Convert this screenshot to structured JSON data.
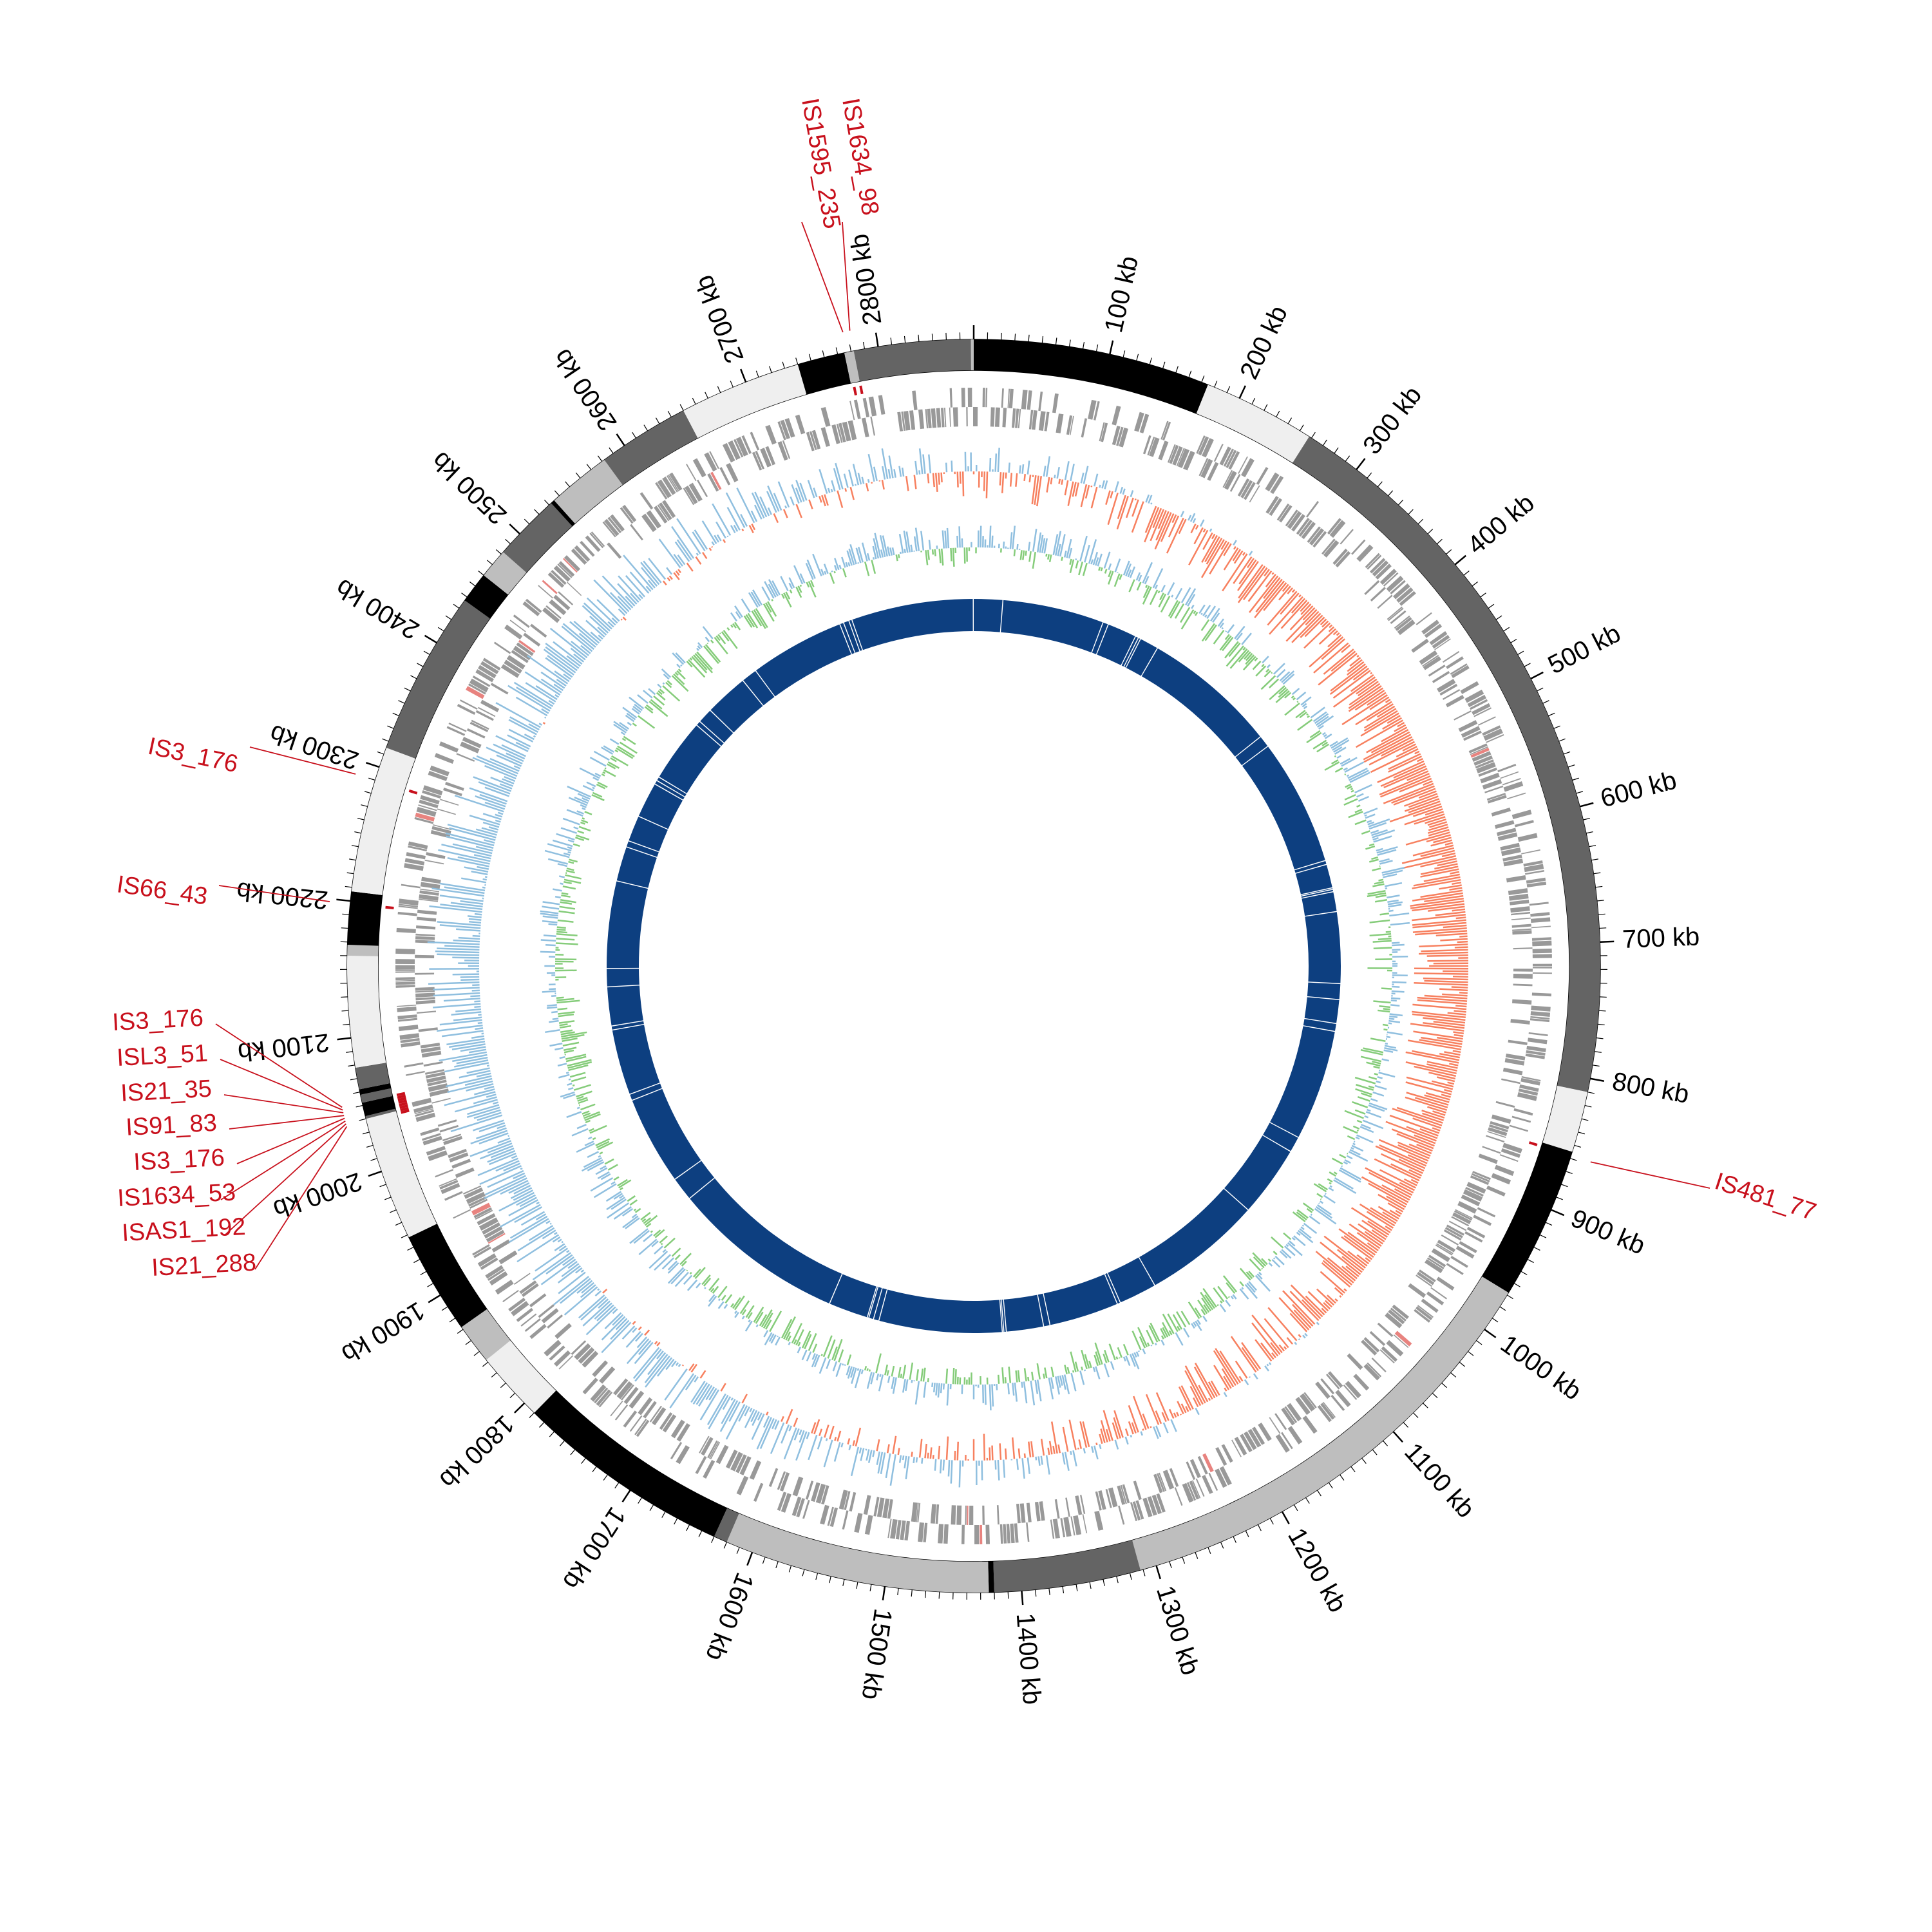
{
  "genome": {
    "length_kb": 2870,
    "tick_labels": [
      "100 kb",
      "200 kb",
      "300 kb",
      "400 kb",
      "500 kb",
      "600 kb",
      "700 kb",
      "800 kb",
      "900 kb",
      "1000 kb",
      "1100 kb",
      "1200 kb",
      "1300 kb",
      "1400 kb",
      "1500 kb",
      "1600 kb",
      "1700 kb",
      "1800 kb",
      "1900 kb",
      "2000 kb",
      "2100 kb",
      "2200 kb",
      "2300 kb",
      "2400 kb",
      "2500 kb",
      "2600 kb",
      "2700 kb",
      "2800 kb"
    ],
    "tick_positions_kb": [
      100,
      200,
      300,
      400,
      500,
      600,
      700,
      800,
      900,
      1000,
      1100,
      1200,
      1300,
      1400,
      1500,
      1600,
      1700,
      1800,
      1900,
      2000,
      2100,
      2200,
      2300,
      2400,
      2500,
      2600,
      2700,
      2800
    ]
  },
  "contig_blocks": [
    {
      "start": 0,
      "end": 175,
      "color": "#000000"
    },
    {
      "start": 175,
      "end": 258,
      "color": "#efefef"
    },
    {
      "start": 258,
      "end": 810,
      "color": "#646464"
    },
    {
      "start": 810,
      "end": 855,
      "color": "#efefef"
    },
    {
      "start": 855,
      "end": 968,
      "color": "#000000"
    },
    {
      "start": 968,
      "end": 1312,
      "color": "#bebebe"
    },
    {
      "start": 1312,
      "end": 1420,
      "color": "#646464"
    },
    {
      "start": 1420,
      "end": 1424,
      "color": "#000000"
    },
    {
      "start": 1424,
      "end": 1620,
      "color": "#bebebe"
    },
    {
      "start": 1620,
      "end": 1630,
      "color": "#646464"
    },
    {
      "start": 1630,
      "end": 1790,
      "color": "#000000"
    },
    {
      "start": 1790,
      "end": 1842,
      "color": "#efefef"
    },
    {
      "start": 1842,
      "end": 1872,
      "color": "#bebebe"
    },
    {
      "start": 1872,
      "end": 1948,
      "color": "#000000"
    },
    {
      "start": 1948,
      "end": 2040,
      "color": "#efefef"
    },
    {
      "start": 2040,
      "end": 2042,
      "color": "#646464"
    },
    {
      "start": 2042,
      "end": 2052,
      "color": "#000000"
    },
    {
      "start": 2052,
      "end": 2058,
      "color": "#646464"
    },
    {
      "start": 2058,
      "end": 2062,
      "color": "#000000"
    },
    {
      "start": 2062,
      "end": 2078,
      "color": "#646464"
    },
    {
      "start": 2078,
      "end": 2160,
      "color": "#efefef"
    },
    {
      "start": 2160,
      "end": 2168,
      "color": "#bebebe"
    },
    {
      "start": 2168,
      "end": 2207,
      "color": "#000000"
    },
    {
      "start": 2207,
      "end": 2315,
      "color": "#efefef"
    },
    {
      "start": 2315,
      "end": 2437,
      "color": "#646464"
    },
    {
      "start": 2437,
      "end": 2460,
      "color": "#000000"
    },
    {
      "start": 2460,
      "end": 2482,
      "color": "#bebebe"
    },
    {
      "start": 2482,
      "end": 2532,
      "color": "#646464"
    },
    {
      "start": 2532,
      "end": 2535,
      "color": "#000000"
    },
    {
      "start": 2535,
      "end": 2582,
      "color": "#bebebe"
    },
    {
      "start": 2582,
      "end": 2650,
      "color": "#646464"
    },
    {
      "start": 2650,
      "end": 2740,
      "color": "#efefef"
    },
    {
      "start": 2740,
      "end": 2775,
      "color": "#000000"
    },
    {
      "start": 2775,
      "end": 2782,
      "color": "#bebebe"
    },
    {
      "start": 2782,
      "end": 2868,
      "color": "#646464"
    },
    {
      "start": 2868,
      "end": 2870,
      "color": "#bebebe"
    }
  ],
  "is_elements": [
    {
      "label": "IS1634_98",
      "pos": 2782
    },
    {
      "label": "IS1595_235",
      "pos": 2777
    },
    {
      "label": "IS481_77",
      "pos": 858
    },
    {
      "label": "IS3_176",
      "pos": 2290
    },
    {
      "label": "IS66_43",
      "pos": 2198
    },
    {
      "label": "IS3_176",
      "pos": 2052
    },
    {
      "label": "ISL3_51",
      "pos": 2050
    },
    {
      "label": "IS21_35",
      "pos": 2048
    },
    {
      "label": "IS91_83",
      "pos": 2046
    },
    {
      "label": "IS3_176",
      "pos": 2044
    },
    {
      "label": "IS1634_53",
      "pos": 2042
    },
    {
      "label": "ISAS1_192",
      "pos": 2040
    },
    {
      "label": "IS21_288",
      "pos": 2038
    }
  ],
  "homology_gaps_kb": [
    37,
    165,
    172,
    209,
    213,
    216,
    240,
    410,
    425,
    585,
    590,
    620,
    622,
    625,
    650,
    740,
    760,
    790,
    800,
    940,
    960,
    1050,
    1200,
    1248,
    1252,
    1340,
    1348,
    1395,
    1398,
    1400,
    1555,
    1562,
    1568,
    1570,
    1620,
    1840,
    1870,
    1982,
    1990,
    2073,
    2078,
    2127,
    2150,
    2260,
    2304,
    2312,
    2345,
    2390,
    2395,
    2400,
    2480,
    2486,
    2505,
    2560,
    2580,
    2580,
    2700,
    2705,
    2712,
    2716
  ],
  "colors": {
    "gene_track": "#999999",
    "gene_highlight": "#e8837f",
    "gc_skew_positive": "#8fbfdf",
    "gc_skew_negative": "#f7805f",
    "gc_content_positive": "#8fbfdf",
    "gc_content_negative": "#85cc7a",
    "homology": "#0d3f80",
    "is_marker": "#c8101c",
    "tick": "#000000"
  }
}
